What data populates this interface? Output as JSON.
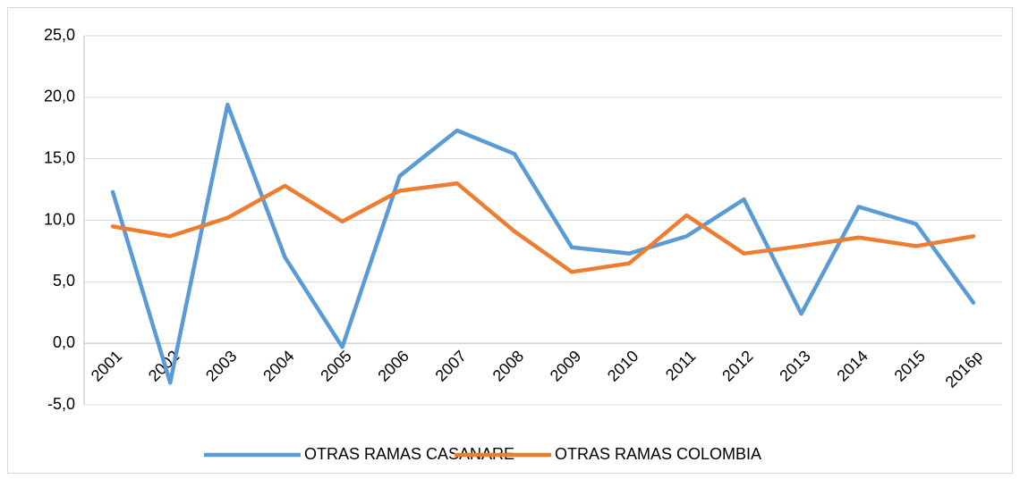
{
  "chart_data": {
    "type": "line",
    "categories": [
      "2001",
      "2002",
      "2003",
      "2004",
      "2005",
      "2006",
      "2007",
      "2008",
      "2009",
      "2010",
      "2011",
      "2012",
      "2013",
      "2014",
      "2015",
      "2016p"
    ],
    "series": [
      {
        "name": "OTRAS RAMAS CASANARE",
        "color": "#5b9bd5",
        "values": [
          12.3,
          -3.2,
          19.4,
          7.0,
          -0.3,
          13.6,
          17.3,
          15.4,
          7.8,
          7.3,
          8.7,
          11.7,
          2.4,
          11.1,
          9.7,
          3.3
        ]
      },
      {
        "name": "OTRAS RAMAS COLOMBIA",
        "color": "#ed7d31",
        "values": [
          9.5,
          8.7,
          10.2,
          12.8,
          9.9,
          12.4,
          13.0,
          9.1,
          5.8,
          6.5,
          10.4,
          7.3,
          7.9,
          8.6,
          7.9,
          8.7
        ]
      }
    ],
    "ylim": [
      -5,
      25
    ],
    "yticks": [
      {
        "value": -5,
        "label": "-5,0"
      },
      {
        "value": 0,
        "label": "0,0"
      },
      {
        "value": 5,
        "label": "5,0"
      },
      {
        "value": 10,
        "label": "10,0"
      },
      {
        "value": 15,
        "label": "15,0"
      },
      {
        "value": 20,
        "label": "20,0"
      },
      {
        "value": 25,
        "label": "25,0"
      }
    ],
    "grid": true,
    "legend": "bottom"
  }
}
